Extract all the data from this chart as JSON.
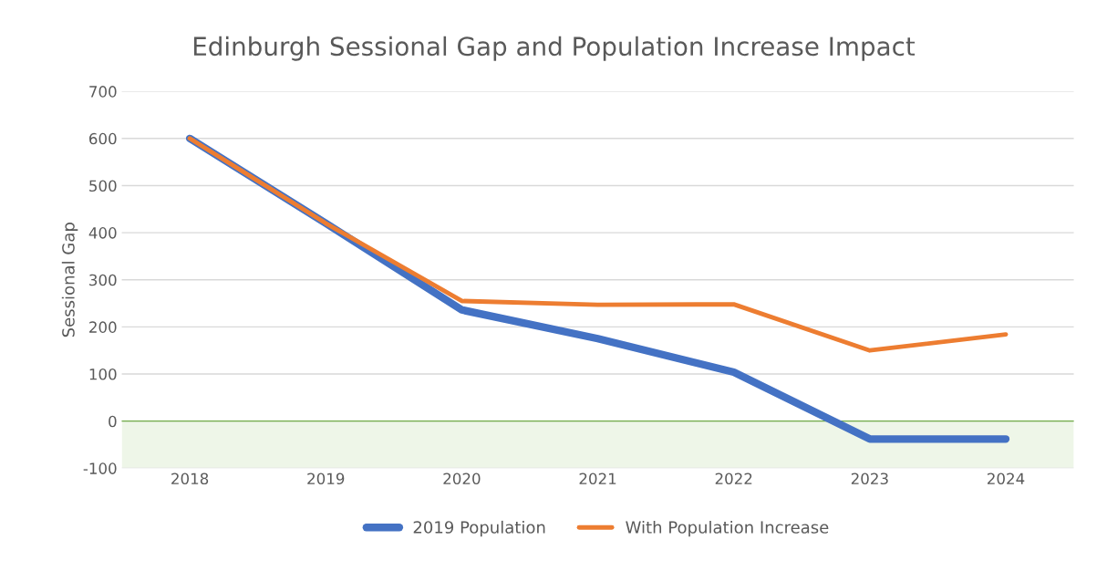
{
  "chart_data": {
    "type": "line",
    "title": "Edinburgh Sessional Gap and Population Increase Impact",
    "ylabel": "Sessional Gap",
    "categories": [
      "2018",
      "2019",
      "2020",
      "2021",
      "2022",
      "2023",
      "2024"
    ],
    "series": [
      {
        "name": "2019 Population",
        "color": "#4472c4",
        "values": [
          600,
          420,
          236,
          175,
          104,
          -38,
          -38
        ]
      },
      {
        "name": "With Population Increase",
        "color": "#ed7d31",
        "values": [
          600,
          420,
          255,
          247,
          248,
          150,
          184
        ]
      }
    ],
    "ylim": [
      -100,
      700
    ],
    "yticks": [
      -100,
      0,
      100,
      200,
      300,
      400,
      500,
      600,
      700
    ],
    "grid": "y",
    "legend": "bottom",
    "marker": "none",
    "line_style": "solid",
    "ref_lines": [
      {
        "axis": "y",
        "value": 0,
        "color": "#70ad47"
      }
    ],
    "bands": [
      {
        "axis": "y",
        "from": -100,
        "to": 0,
        "color": "#eef6e8"
      }
    ]
  }
}
